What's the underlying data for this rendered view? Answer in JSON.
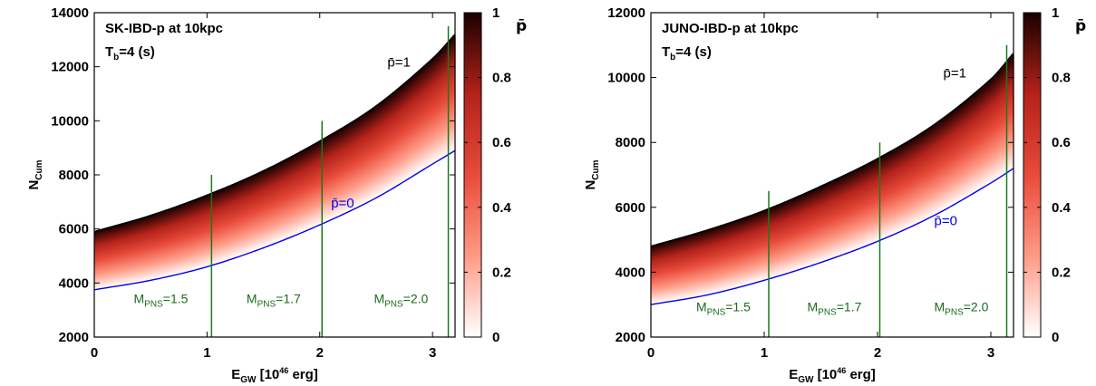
{
  "chart_data": [
    {
      "type": "area",
      "title": "SK-IBD-p at 10kpc",
      "subtitle_main": "T",
      "subtitle_sub": "b",
      "subtitle_rest": "=4 (s)",
      "xlabel_main": "E",
      "xlabel_sub": "GW",
      "xlabel_mid": " [10",
      "xlabel_sup": "46",
      "xlabel_end": " erg]",
      "ylabel_main": "N",
      "ylabel_sub": "Cum",
      "xlim": [
        0,
        3.2
      ],
      "ylim": [
        2000,
        14000
      ],
      "xticks": [
        "0",
        "1",
        "2",
        "3"
      ],
      "xtick_values": [
        0,
        1,
        2,
        3
      ],
      "yticks": [
        "2000",
        "4000",
        "6000",
        "8000",
        "10000",
        "12000",
        "14000"
      ],
      "ytick_values": [
        2000,
        4000,
        6000,
        8000,
        10000,
        12000,
        14000
      ],
      "upper_curve": {
        "label": "p̄=1",
        "color": "#000000",
        "x": [
          0,
          0.5,
          1.0,
          1.5,
          2.0,
          2.5,
          3.0,
          3.2
        ],
        "y": [
          5900,
          6500,
          7250,
          8150,
          9250,
          10550,
          12300,
          13200
        ]
      },
      "lower_curve": {
        "label": "p̄=0",
        "color": "#0000ee",
        "x": [
          0,
          0.5,
          1.0,
          1.5,
          2.0,
          2.5,
          3.0,
          3.2
        ],
        "y": [
          3750,
          4100,
          4600,
          5300,
          6150,
          7150,
          8400,
          8900
        ]
      },
      "label_p1_pos": {
        "x": 2.6,
        "y": 12000
      },
      "label_p0_pos": {
        "x": 2.1,
        "y": 6800
      },
      "mpns_lines": [
        {
          "x": 1.04,
          "ymax": 8000,
          "label_main": "M",
          "label_sub": "PNS",
          "label_rest": "=1.5",
          "label_x": 0.35
        },
        {
          "x": 2.02,
          "ymax": 10000,
          "label_main": "M",
          "label_sub": "PNS",
          "label_rest": "=1.7",
          "label_x": 1.35
        },
        {
          "x": 3.14,
          "ymax": 13500,
          "label_main": "M",
          "label_sub": "PNS",
          "label_rest": "=2.0",
          "label_x": 2.48
        }
      ],
      "mpns_label_y": 3250,
      "colorbar": {
        "title": "p̄",
        "range": [
          0,
          1
        ],
        "ticks": [
          "0",
          "0.2",
          "0.4",
          "0.6",
          "0.8",
          "1"
        ],
        "tick_values": [
          0,
          0.2,
          0.4,
          0.6,
          0.8,
          1
        ],
        "colors": [
          "#ffffff",
          "#ff9a85",
          "#e84b3a",
          "#b3221a",
          "#1a0000"
        ]
      }
    },
    {
      "type": "area",
      "title": "JUNO-IBD-p at 10kpc",
      "subtitle_main": "T",
      "subtitle_sub": "b",
      "subtitle_rest": "=4 (s)",
      "xlabel_main": "E",
      "xlabel_sub": "GW",
      "xlabel_mid": " [10",
      "xlabel_sup": "46",
      "xlabel_end": " erg]",
      "ylabel_main": "N",
      "ylabel_sub": "Cum",
      "xlim": [
        0,
        3.2
      ],
      "ylim": [
        2000,
        12000
      ],
      "xticks": [
        "0",
        "1",
        "2",
        "3"
      ],
      "xtick_values": [
        0,
        1,
        2,
        3
      ],
      "yticks": [
        "2000",
        "4000",
        "6000",
        "8000",
        "10000",
        "12000"
      ],
      "ytick_values": [
        2000,
        4000,
        6000,
        8000,
        10000,
        12000
      ],
      "upper_curve": {
        "label": "p̄=1",
        "color": "#000000",
        "x": [
          0,
          0.5,
          1.0,
          1.5,
          2.0,
          2.5,
          3.0,
          3.2
        ],
        "y": [
          4800,
          5300,
          5900,
          6650,
          7500,
          8550,
          9950,
          10750
        ]
      },
      "lower_curve": {
        "label": "p̄=0",
        "color": "#0000ee",
        "x": [
          0,
          0.5,
          1.0,
          1.5,
          2.0,
          2.5,
          3.0,
          3.2
        ],
        "y": [
          3000,
          3300,
          3750,
          4300,
          4950,
          5750,
          6750,
          7200
        ]
      },
      "label_p1_pos": {
        "x": 2.58,
        "y": 10000
      },
      "label_p0_pos": {
        "x": 2.5,
        "y": 5450
      },
      "mpns_lines": [
        {
          "x": 1.04,
          "ymax": 6500,
          "label_main": "M",
          "label_sub": "PNS",
          "label_rest": "=1.5",
          "label_x": 0.4
        },
        {
          "x": 2.02,
          "ymax": 8000,
          "label_main": "M",
          "label_sub": "PNS",
          "label_rest": "=1.7",
          "label_x": 1.38
        },
        {
          "x": 3.14,
          "ymax": 11000,
          "label_main": "M",
          "label_sub": "PNS",
          "label_rest": "=2.0",
          "label_x": 2.5
        }
      ],
      "mpns_label_y": 2800,
      "colorbar": {
        "title": "p̄",
        "range": [
          0,
          1
        ],
        "ticks": [
          "0",
          "0.2",
          "0.4",
          "0.6",
          "0.8",
          "1"
        ],
        "tick_values": [
          0,
          0.2,
          0.4,
          0.6,
          0.8,
          1
        ],
        "colors": [
          "#ffffff",
          "#ff9a85",
          "#e84b3a",
          "#b3221a",
          "#1a0000"
        ]
      }
    }
  ]
}
